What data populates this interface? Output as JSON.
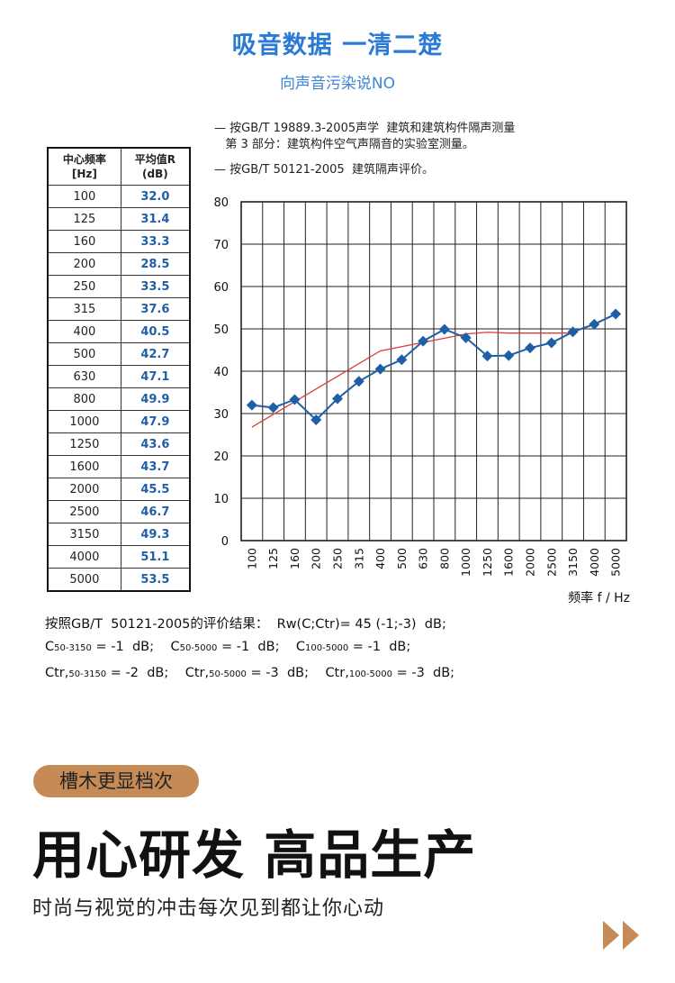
{
  "header": {
    "title": "吸音数据 一清二楚",
    "subtitle": "向声音污染说NO"
  },
  "standards": [
    "— 按GB/T 19889.3-2005声学  建筑和建筑构件隔声测量",
    "   第 3 部分：建筑构件空气声隔音的实验室测量。",
    "— 按GB/T 50121-2005  建筑隔声评价。"
  ],
  "table": {
    "headers": [
      [
        "中心频率",
        "[Hz]"
      ],
      [
        "平均值R",
        "(dB)"
      ]
    ],
    "rows": [
      [
        "100",
        "32.0"
      ],
      [
        "125",
        "31.4"
      ],
      [
        "160",
        "33.3"
      ],
      [
        "200",
        "28.5"
      ],
      [
        "250",
        "33.5"
      ],
      [
        "315",
        "37.6"
      ],
      [
        "400",
        "40.5"
      ],
      [
        "500",
        "42.7"
      ],
      [
        "630",
        "47.1"
      ],
      [
        "800",
        "49.9"
      ],
      [
        "1000",
        "47.9"
      ],
      [
        "1250",
        "43.6"
      ],
      [
        "1600",
        "43.7"
      ],
      [
        "2000",
        "45.5"
      ],
      [
        "2500",
        "46.7"
      ],
      [
        "3150",
        "49.3"
      ],
      [
        "4000",
        "51.1"
      ],
      [
        "5000",
        "53.5"
      ]
    ]
  },
  "chart_data": {
    "type": "line",
    "categories": [
      "100",
      "125",
      "160",
      "200",
      "250",
      "315",
      "400",
      "500",
      "630",
      "800",
      "1000",
      "1250",
      "1600",
      "2000",
      "2500",
      "3150",
      "4000",
      "5000"
    ],
    "series": [
      {
        "name": "",
        "color": "#1f5fa6",
        "marker": "diamond",
        "values": [
          32.0,
          31.4,
          33.3,
          28.5,
          33.5,
          37.6,
          40.5,
          42.7,
          47.1,
          49.9,
          47.9,
          43.6,
          43.7,
          45.5,
          46.7,
          49.3,
          51.1,
          53.5
        ]
      },
      {
        "name": "",
        "color": "#e03a3a",
        "marker": "none",
        "values": [
          26.8,
          29.8,
          32.8,
          35.8,
          38.8,
          41.8,
          44.8,
          45.8,
          46.8,
          47.8,
          48.8,
          49.2,
          49.0,
          49.0,
          49.0,
          49.0,
          null,
          null
        ]
      }
    ],
    "xlabel": "频率 f / Hz",
    "ylabel": "",
    "yticks": [
      "0",
      "10",
      "20",
      "30",
      "40",
      "50",
      "60",
      "70",
      "80"
    ],
    "ylim": [
      0,
      80
    ],
    "grid": true
  },
  "results": {
    "line1": "按照GB/T  50121-2005的评价结果：  Rw(C;Ctr)= 45 (-1;-3)  dB;",
    "line2": [
      {
        "pre": "C",
        "sub": "50-3150",
        "post": " = -1  dB;"
      },
      {
        "pre": "C",
        "sub": "50-5000",
        "post": " = -1  dB;"
      },
      {
        "pre": "C",
        "sub": "100-5000",
        "post": " = -1  dB;"
      }
    ],
    "line3": [
      {
        "pre": "Ctr,",
        "sub": "50-3150",
        "post": " = -2  dB;"
      },
      {
        "pre": "Ctr,",
        "sub": "50-5000",
        "post": " = -3  dB;"
      },
      {
        "pre": "Ctr,",
        "sub": "100-5000",
        "post": " = -3  dB;"
      }
    ]
  },
  "promo": {
    "badge": "槽木更显档次",
    "headline": "用心研发 高品生产",
    "tagline": "时尚与视觉的冲击每次见到都让你心动",
    "accent": "#c58a55",
    "arrows_icon": "double-chevron-right-icon"
  }
}
